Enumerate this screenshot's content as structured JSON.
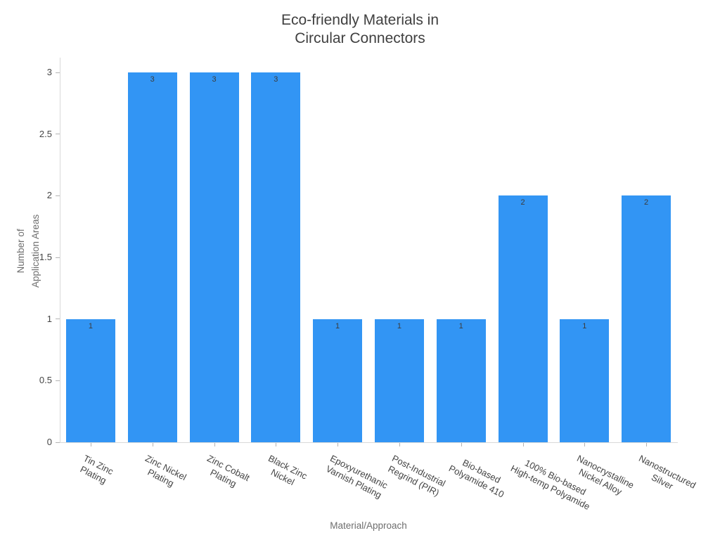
{
  "chart_data": {
    "type": "bar",
    "title": "Eco-friendly Materials in\nCircular Connectors",
    "xlabel": "Material/Approach",
    "ylabel": "Number of\nApplication Areas",
    "categories": [
      "Tin Zinc\nPlating",
      "Zinc Nickel\nPlating",
      "Zinc Cobalt\nPlating",
      "Black Zinc\nNickel",
      "Epoxyurethanic\nVarnish Plating",
      "Post-Industrial\nRegrind (PIR)",
      "Bio-based\nPolyamide 410",
      "100% Bio-based\nHigh-temp Polyamide",
      "Nanocrystalline\nNickel Alloy",
      "Nanostructured\nSilver"
    ],
    "values": [
      1,
      3,
      3,
      3,
      1,
      1,
      1,
      2,
      1,
      2
    ],
    "bar_labels": [
      "1",
      "3",
      "3",
      "3",
      "1",
      "1",
      "1",
      "2",
      "1",
      "2"
    ],
    "yticks": [
      0,
      0.5,
      1,
      1.5,
      2,
      2.5,
      3
    ],
    "ylim": [
      0,
      3
    ],
    "grid": false,
    "legend": "none",
    "colors": {
      "bar": "#3295F4",
      "axis_line": "#D9D9D9",
      "tick_mark": "#B3B3B3",
      "title_text": "#404040",
      "tick_text": "#444444",
      "axis_title_text": "#6E6E6E",
      "bar_label_text": "#3B3B3B",
      "background": "#FFFFFF"
    }
  }
}
